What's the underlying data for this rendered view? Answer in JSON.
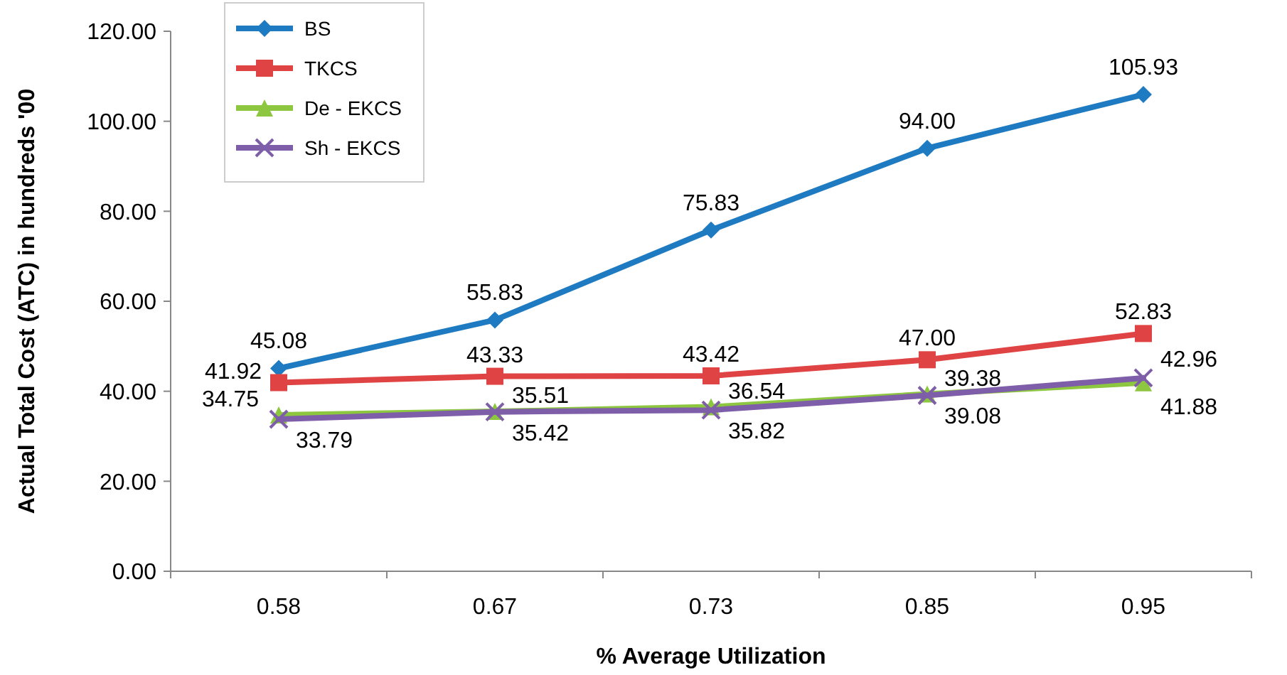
{
  "chart_data": {
    "type": "line",
    "xlabel": "% Average Utilization",
    "ylabel": "Actual Total Cost (ATC) in hundreds '00",
    "categories": [
      "0.58",
      "0.67",
      "0.73",
      "0.85",
      "0.95"
    ],
    "ylim": [
      0,
      120
    ],
    "yticks": [
      {
        "value": 0,
        "label": "0.00"
      },
      {
        "value": 20,
        "label": "20.00"
      },
      {
        "value": 40,
        "label": "40.00"
      },
      {
        "value": 60,
        "label": "60.00"
      },
      {
        "value": 80,
        "label": "80.00"
      },
      {
        "value": 100,
        "label": "100.00"
      },
      {
        "value": 120,
        "label": "120.00"
      }
    ],
    "grid": false,
    "legend": "top left",
    "line_style": "solid",
    "series": [
      {
        "name": "BS",
        "color": "#1f7bc1",
        "marker": "diamond",
        "values": [
          45.08,
          55.83,
          75.83,
          94.0,
          105.93
        ],
        "value_labels": [
          "45.08",
          "55.83",
          "75.83",
          "94.00",
          "105.93"
        ]
      },
      {
        "name": "TKCS",
        "color": "#e04343",
        "marker": "square",
        "values": [
          41.92,
          43.33,
          43.42,
          47.0,
          52.83
        ],
        "value_labels": [
          "41.92",
          "43.33",
          "43.42",
          "47.00",
          "52.83"
        ]
      },
      {
        "name": "De - EKCS",
        "color": "#8dc63f",
        "marker": "triangle",
        "values": [
          34.75,
          35.51,
          36.54,
          39.38,
          41.88
        ],
        "value_labels": [
          "34.75",
          "35.51",
          "36.54",
          "39.38",
          "41.88"
        ]
      },
      {
        "name": "Sh - EKCS",
        "color": "#7e5ea8",
        "marker": "cross",
        "values": [
          33.79,
          35.42,
          35.82,
          39.08,
          42.96
        ],
        "value_labels": [
          "33.79",
          "35.42",
          "35.82",
          "39.08",
          "42.96"
        ]
      }
    ]
  }
}
